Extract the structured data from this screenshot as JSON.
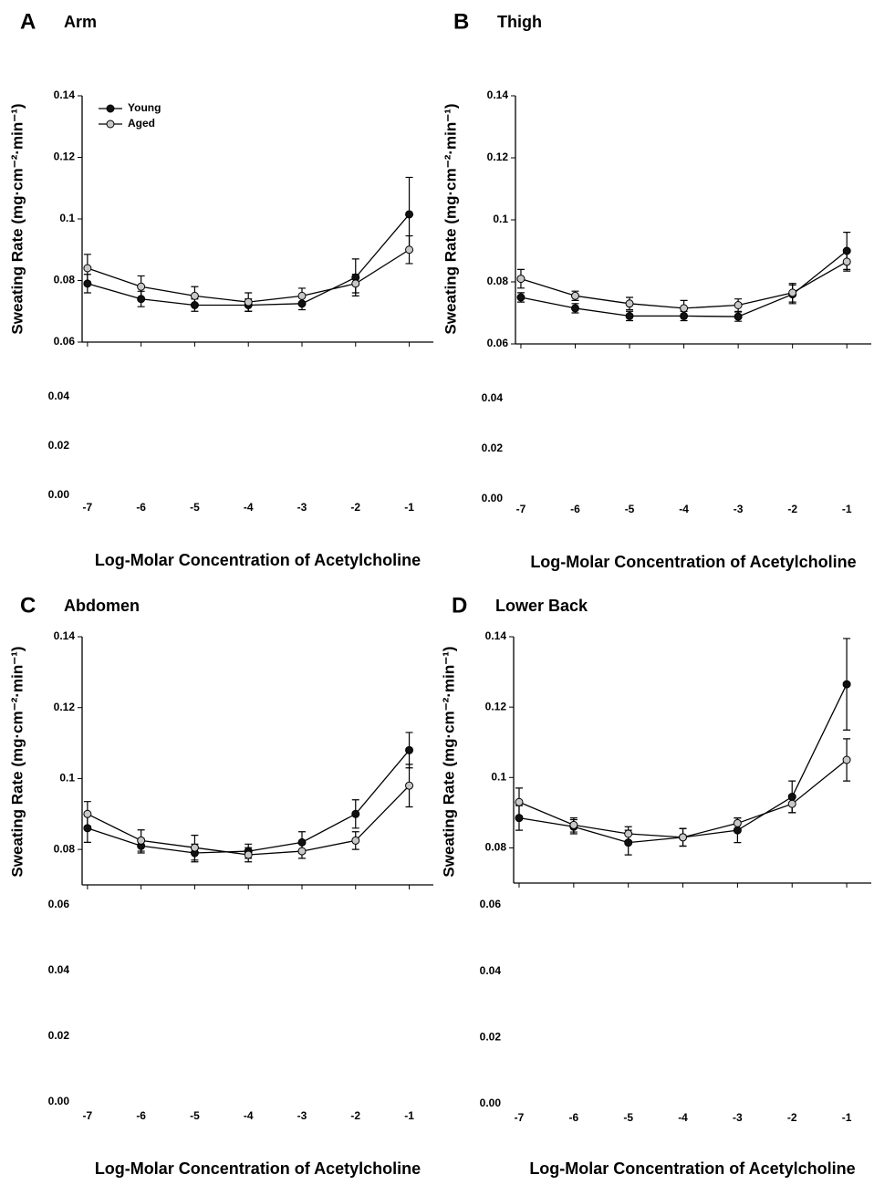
{
  "chart_data": [
    {
      "type": "line",
      "panel": "A",
      "title": "Arm",
      "ylabel": "Sweating Rate (mg·cm⁻²·min⁻¹)",
      "xlabel": "Log-Molar Concentration of Acetylcholine",
      "x": [
        -7,
        -6,
        -5,
        -4,
        -3,
        -2,
        -1
      ],
      "xlim": [
        -7.1,
        -0.55
      ],
      "xticks": [
        -7,
        -6,
        -5,
        -4,
        -3,
        -2,
        -1
      ],
      "ylim": [
        0.06,
        0.14
      ],
      "yticks": [
        0.06,
        0.08,
        0.1,
        0.12,
        0.14
      ],
      "lower_ylim": [
        0,
        0.04
      ],
      "lower_yticks": [
        {
          "value": 0,
          "label": "0.00"
        },
        0.02,
        0.04
      ],
      "legend": "upper left",
      "series": [
        {
          "name": "Young",
          "color": "#111111",
          "values": [
            0.079,
            0.074,
            0.072,
            0.072,
            0.0725,
            0.081,
            0.1015
          ],
          "errors": [
            0.003,
            0.0025,
            0.002,
            0.002,
            0.002,
            0.006,
            0.012
          ]
        },
        {
          "name": "Aged",
          "color": "#c8c8c8",
          "values": [
            0.084,
            0.078,
            0.075,
            0.073,
            0.075,
            0.079,
            0.09
          ],
          "errors": [
            0.0045,
            0.0035,
            0.003,
            0.003,
            0.0025,
            0.003,
            0.0045
          ]
        }
      ]
    },
    {
      "type": "line",
      "panel": "B",
      "title": "Thigh",
      "ylabel": "Sweating Rate (mg·cm⁻²·min⁻¹)",
      "xlabel": "Log-Molar Concentration of Acetylcholine",
      "x": [
        -7,
        -6,
        -5,
        -4,
        -3,
        -2,
        -1
      ],
      "xlim": [
        -7.1,
        -0.55
      ],
      "xticks": [
        -7,
        -6,
        -5,
        -4,
        -3,
        -2,
        -1
      ],
      "ylim": [
        0.06,
        0.14
      ],
      "yticks": [
        0.06,
        0.08,
        0.1,
        0.12,
        0.14
      ],
      "lower_ylim": [
        0,
        0.04
      ],
      "lower_yticks": [
        {
          "value": 0,
          "label": "0.00"
        },
        0.02,
        0.04
      ],
      "series": [
        {
          "color": "#111111",
          "values": [
            0.075,
            0.0715,
            0.069,
            0.069,
            0.0688,
            0.076,
            0.09
          ],
          "errors": [
            0.0015,
            0.0015,
            0.0015,
            0.0015,
            0.0015,
            0.003,
            0.006
          ]
        },
        {
          "color": "#c8c8c8",
          "values": [
            0.081,
            0.0755,
            0.073,
            0.0715,
            0.0725,
            0.0765,
            0.0865
          ],
          "errors": [
            0.003,
            0.0015,
            0.002,
            0.0025,
            0.002,
            0.003,
            0.003
          ]
        }
      ]
    },
    {
      "type": "line",
      "panel": "C",
      "title": "Abdomen",
      "ylabel": "Sweating Rate (mg·cm⁻²·min⁻¹)",
      "xlabel": "Log-Molar Concentration of Acetylcholine",
      "x": [
        -7,
        -6,
        -5,
        -4,
        -3,
        -2,
        -1
      ],
      "xlim": [
        -7.1,
        -0.55
      ],
      "xticks": [
        -7,
        -6,
        -5,
        -4,
        -3,
        -2,
        -1
      ],
      "ylim": [
        0.07,
        0.14
      ],
      "yticks": [
        0.08,
        0.1,
        0.12,
        0.14
      ],
      "lower_ylim": [
        0,
        0.06
      ],
      "lower_yticks": [
        {
          "value": 0,
          "label": "0.00"
        },
        0.02,
        0.04,
        0.06
      ],
      "series": [
        {
          "color": "#111111",
          "values": [
            0.086,
            0.081,
            0.079,
            0.0795,
            0.082,
            0.09,
            0.108
          ],
          "errors": [
            0.004,
            0.002,
            0.0025,
            0.002,
            0.003,
            0.004,
            0.005
          ]
        },
        {
          "color": "#c8c8c8",
          "values": [
            0.09,
            0.0825,
            0.0805,
            0.0785,
            0.0795,
            0.0825,
            0.098
          ],
          "errors": [
            0.0035,
            0.003,
            0.0035,
            0.002,
            0.002,
            0.0025,
            0.006
          ]
        }
      ]
    },
    {
      "type": "line",
      "panel": "D",
      "title": "Lower Back",
      "ylabel": "Sweating Rate (mg·cm⁻²·min⁻¹)",
      "xlabel": "Log-Molar Concentration of Acetylcholine",
      "x": [
        -7,
        -6,
        -5,
        -4,
        -3,
        -2,
        -1
      ],
      "xlim": [
        -7.1,
        -0.55
      ],
      "xticks": [
        -7,
        -6,
        -5,
        -4,
        -3,
        -2,
        -1
      ],
      "ylim": [
        0.07,
        0.14
      ],
      "yticks": [
        0.08,
        0.1,
        0.12,
        0.14
      ],
      "lower_ylim": [
        0,
        0.06
      ],
      "lower_yticks": [
        {
          "value": 0,
          "label": "0.00"
        },
        0.02,
        0.04,
        0.06
      ],
      "series": [
        {
          "color": "#111111",
          "values": [
            0.0885,
            0.086,
            0.0815,
            0.083,
            0.085,
            0.0945,
            0.1265
          ],
          "errors": [
            0.0035,
            0.002,
            0.0035,
            0.0025,
            0.0035,
            0.0045,
            0.013
          ]
        },
        {
          "color": "#c8c8c8",
          "values": [
            0.093,
            0.0865,
            0.084,
            0.083,
            0.087,
            0.0925,
            0.105
          ],
          "errors": [
            0.004,
            0.002,
            0.002,
            0.0025,
            0.0015,
            0.0025,
            0.006
          ]
        }
      ]
    }
  ]
}
